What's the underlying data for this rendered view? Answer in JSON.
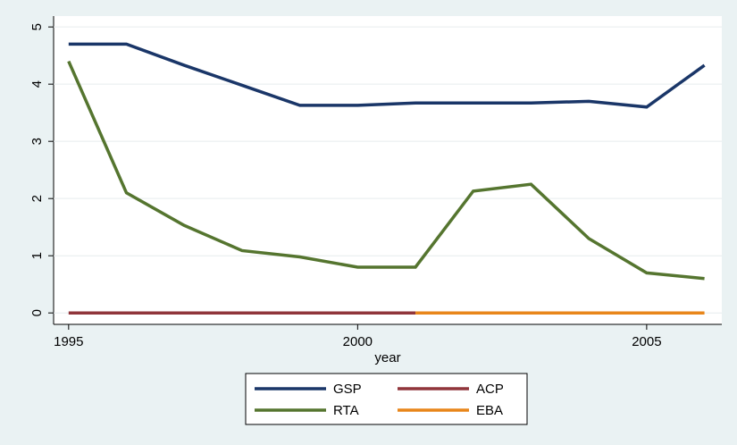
{
  "chart_data": {
    "type": "line",
    "x": [
      1995,
      1996,
      1997,
      1998,
      1999,
      2000,
      2001,
      2002,
      2003,
      2004,
      2005,
      2006
    ],
    "x_label": "year",
    "series": [
      {
        "name": "GSP",
        "color": "#1a3668",
        "values": [
          4.7,
          4.7,
          4.33,
          3.98,
          3.63,
          3.63,
          3.67,
          3.67,
          3.67,
          3.7,
          3.6,
          4.33
        ]
      },
      {
        "name": "ACP",
        "color": "#90353b",
        "values": [
          0,
          0,
          0,
          0,
          0,
          0,
          0,
          null,
          null,
          null,
          null,
          null
        ]
      },
      {
        "name": "RTA",
        "color": "#55752f",
        "values": [
          4.4,
          2.1,
          1.53,
          1.09,
          0.98,
          0.8,
          0.8,
          2.13,
          2.25,
          1.3,
          0.7,
          0.6
        ]
      },
      {
        "name": "EBA",
        "color": "#e8861a",
        "values": [
          null,
          null,
          null,
          null,
          null,
          null,
          0,
          0,
          0,
          0,
          0,
          0
        ]
      }
    ],
    "xlim": [
      1994.74,
      2006.3
    ],
    "xticks": [
      1995,
      2000,
      2005
    ],
    "ylim": [
      -0.2,
      5.19
    ],
    "yticks": [
      0,
      1,
      2,
      3,
      4,
      5
    ],
    "grid": true
  }
}
